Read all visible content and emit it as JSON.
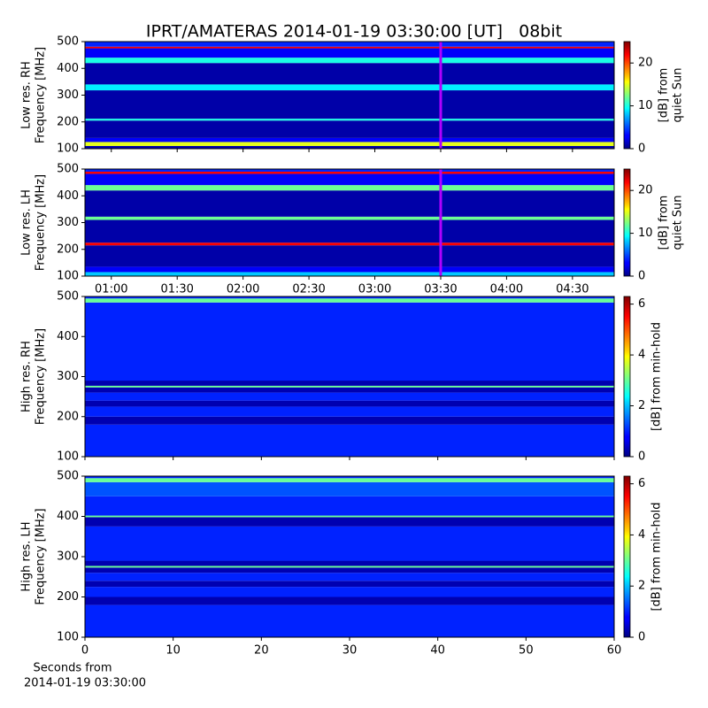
{
  "chart_data": [
    {
      "type": "heatmap",
      "title": "IPRT/AMATERAS 2014-01-19 03:30:00 [UT]   08bit",
      "ylabel": [
        "Low res. RH",
        "Frequency [MHz]"
      ],
      "colorbar_label": [
        "[dB] from",
        "quiet Sun"
      ],
      "colormap": "jet",
      "xlim": [
        48,
        289
      ],
      "xticks": [
        60,
        90,
        120,
        150,
        180,
        210,
        240,
        270
      ],
      "ylim": [
        100,
        500
      ],
      "yticks": [
        100,
        200,
        300,
        400,
        500
      ],
      "clim": [
        0,
        25
      ],
      "cticks": [
        0,
        10,
        20
      ],
      "marker_x": 210,
      "marker_color": "#b000ff",
      "y_edges": [
        100,
        110,
        125,
        140,
        205,
        212,
        318,
        340,
        420,
        440,
        475,
        481,
        500
      ],
      "values": [
        1,
        15,
        3,
        1,
        10,
        1,
        9,
        1,
        10,
        3,
        22,
        4
      ]
    },
    {
      "type": "heatmap",
      "ylabel": [
        "Low res. LH",
        "Frequency [MHz]"
      ],
      "colorbar_label": [
        "[dB] from",
        "quiet Sun"
      ],
      "colormap": "jet",
      "xlim": [
        48,
        289
      ],
      "xticks": [
        {
          "value": 60,
          "label": "01:00"
        },
        {
          "value": 90,
          "label": "01:30"
        },
        {
          "value": 120,
          "label": "02:00"
        },
        {
          "value": 150,
          "label": "02:30"
        },
        {
          "value": 180,
          "label": "03:00"
        },
        {
          "value": 210,
          "label": "03:30"
        },
        {
          "value": 240,
          "label": "04:00"
        },
        {
          "value": 270,
          "label": "04:30"
        }
      ],
      "ylim": [
        100,
        500
      ],
      "yticks": [
        100,
        200,
        300,
        400,
        500
      ],
      "clim": [
        0,
        25
      ],
      "cticks": [
        0,
        10,
        20
      ],
      "marker_x": 210,
      "marker_color": "#b000ff",
      "y_edges": [
        100,
        115,
        135,
        215,
        225,
        310,
        322,
        420,
        440,
        482,
        490,
        500
      ],
      "values": [
        8,
        3,
        1,
        22,
        1,
        12,
        1,
        12,
        3,
        22,
        4
      ]
    },
    {
      "type": "heatmap",
      "ylabel": [
        "High res. RH",
        "Frequency [MHz]"
      ],
      "colorbar_label": [
        "[dB] from min-hold"
      ],
      "colormap": "jet",
      "xlim": [
        0,
        60
      ],
      "xticks": [
        0,
        10,
        20,
        30,
        40,
        50,
        60
      ],
      "ylim": [
        100,
        500
      ],
      "yticks": [
        100,
        200,
        300,
        400,
        500
      ],
      "clim": [
        0,
        6.3
      ],
      "cticks": [
        0,
        2,
        4,
        6
      ],
      "y_edges": [
        100,
        180,
        200,
        225,
        240,
        260,
        273,
        277,
        290,
        485,
        495,
        500
      ],
      "values": [
        1,
        0.3,
        1,
        0.3,
        1,
        0.3,
        3,
        0.3,
        1,
        3,
        1
      ]
    },
    {
      "type": "heatmap",
      "ylabel": [
        "High res. LH",
        "Frequency [MHz]"
      ],
      "colorbar_label": [
        "[dB] from min-hold"
      ],
      "colormap": "jet",
      "xlim": [
        0,
        60
      ],
      "xticks": [
        0,
        10,
        20,
        30,
        40,
        50,
        60
      ],
      "xlabel": [
        "Seconds from",
        "2014-01-19 03:30:00"
      ],
      "ylim": [
        100,
        500
      ],
      "yticks": [
        100,
        200,
        300,
        400,
        500
      ],
      "clim": [
        0,
        6.3
      ],
      "cticks": [
        0,
        2,
        4,
        6
      ],
      "y_edges": [
        100,
        180,
        200,
        225,
        240,
        260,
        273,
        277,
        290,
        375,
        398,
        402,
        450,
        485,
        495,
        500
      ],
      "values": [
        1,
        0.3,
        1,
        0.3,
        1,
        0.3,
        3,
        0.3,
        1,
        0.3,
        3,
        1,
        1.3,
        3,
        1
      ]
    }
  ]
}
